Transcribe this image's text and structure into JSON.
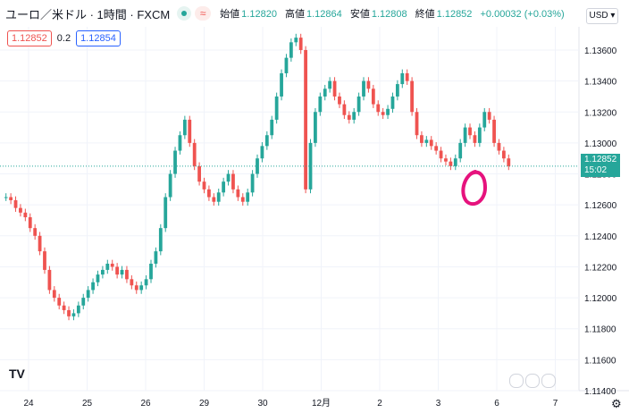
{
  "header": {
    "symbol_title": "ユーロ／米ドル · 1時間 · FXCM",
    "status_badge": "≈",
    "ohlc": {
      "open_label": "始値",
      "open": "1.12820",
      "high_label": "高値",
      "high": "1.12864",
      "low_label": "安値",
      "low": "1.12808",
      "close_label": "終値",
      "close": "1.12852",
      "change": "+0.00032 (+0.03%)"
    }
  },
  "trade": {
    "sell_price": "1.12852",
    "spread": "0.2",
    "buy_price": "1.12854"
  },
  "currency_select": "USD ▾",
  "current_price_tag": {
    "price": "1.12852",
    "countdown": "15:02"
  },
  "logo": "TV",
  "colors": {
    "up": "#26a69a",
    "down": "#ef5350",
    "annotation": "#e6127d"
  },
  "chart_data": {
    "type": "line",
    "y_ticks": [
      "1.13600",
      "1.13400",
      "1.13200",
      "1.13000",
      "1.12800",
      "1.12600",
      "1.12400",
      "1.12200",
      "1.12000",
      "1.11800",
      "1.11600",
      "1.11400"
    ],
    "x_ticks": [
      "24",
      "25",
      "26",
      "29",
      "30",
      "12月",
      "2",
      "3",
      "6",
      "7"
    ],
    "ylim": [
      1.114,
      1.1375
    ],
    "series": [
      {
        "values": [
          1.1265,
          1.1263,
          1.1258,
          1.1255,
          1.1252,
          1.1245,
          1.124,
          1.123,
          1.1218,
          1.1205,
          1.12,
          1.1195,
          1.1192,
          1.1188,
          1.119,
          1.1195,
          1.12,
          1.1205,
          1.121,
          1.1215,
          1.1218,
          1.1222,
          1.122,
          1.1215,
          1.1218,
          1.1212,
          1.1208,
          1.1205,
          1.1208,
          1.1212,
          1.1222,
          1.123,
          1.1245,
          1.1265,
          1.128,
          1.1295,
          1.1305,
          1.1315,
          1.13,
          1.1285,
          1.1275,
          1.127,
          1.1265,
          1.1262,
          1.1268,
          1.1275,
          1.128,
          1.127,
          1.1265,
          1.1262,
          1.1268,
          1.128,
          1.129,
          1.1298,
          1.1305,
          1.1315,
          1.133,
          1.1345,
          1.1355,
          1.1365,
          1.1368,
          1.136,
          1.127,
          1.13,
          1.132,
          1.133,
          1.1335,
          1.134,
          1.133,
          1.1325,
          1.1318,
          1.1315,
          1.132,
          1.133,
          1.134,
          1.1335,
          1.1325,
          1.132,
          1.1318,
          1.1322,
          1.133,
          1.1338,
          1.1345,
          1.134,
          1.132,
          1.1305,
          1.13,
          1.1302,
          1.1298,
          1.1295,
          1.129,
          1.1288,
          1.1285,
          1.129,
          1.13,
          1.131,
          1.1305,
          1.13,
          1.131,
          1.132,
          1.1315,
          1.13,
          1.1295,
          1.129,
          1.1285
        ]
      }
    ],
    "annotation": "circle"
  }
}
